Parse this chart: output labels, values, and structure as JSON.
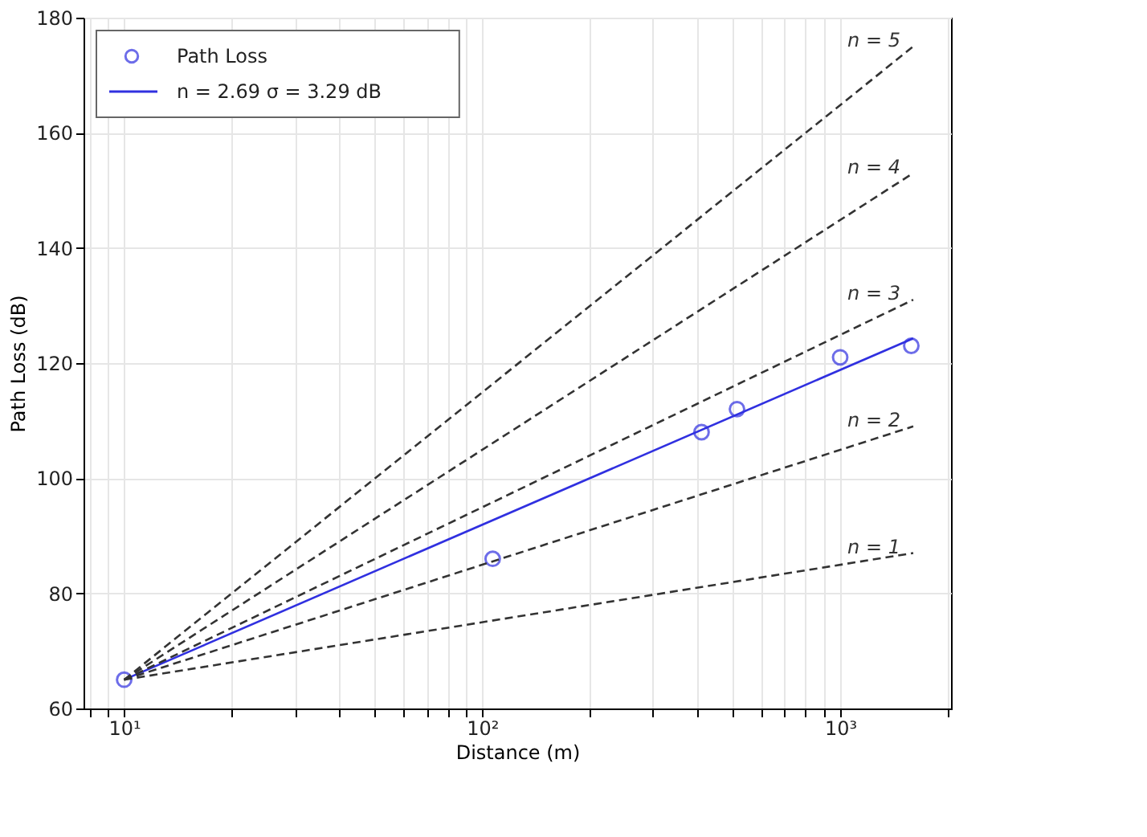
{
  "chart_data": {
    "type": "line",
    "xlabel": "Distance (m)",
    "ylabel": "Path Loss (dB)",
    "log": "x",
    "grid": true,
    "legend": "top left",
    "xlim": [
      7.7,
      2040
    ],
    "ylim": [
      60,
      180
    ],
    "xticks": [
      {
        "value": 8,
        "label": null
      },
      {
        "value": 9,
        "label": null
      },
      {
        "value": 10,
        "label": "10¹"
      },
      {
        "value": 20,
        "label": null
      },
      {
        "value": 30,
        "label": null
      },
      {
        "value": 40,
        "label": null
      },
      {
        "value": 50,
        "label": null
      },
      {
        "value": 60,
        "label": null
      },
      {
        "value": 70,
        "label": null
      },
      {
        "value": 80,
        "label": null
      },
      {
        "value": 90,
        "label": null
      },
      {
        "value": 100,
        "label": "10²"
      },
      {
        "value": 200,
        "label": null
      },
      {
        "value": 300,
        "label": null
      },
      {
        "value": 400,
        "label": null
      },
      {
        "value": 500,
        "label": null
      },
      {
        "value": 600,
        "label": null
      },
      {
        "value": 700,
        "label": null
      },
      {
        "value": 800,
        "label": null
      },
      {
        "value": 900,
        "label": null
      },
      {
        "value": 1000,
        "label": "10³"
      },
      {
        "value": 2000,
        "label": null
      }
    ],
    "yticks": [
      60,
      80,
      100,
      120,
      140,
      160,
      180
    ],
    "series": [
      {
        "name": "Path Loss",
        "type": "scatter",
        "marker": "circle",
        "color": "#3030e0",
        "x": [
          10,
          107,
          410,
          515,
          1000,
          1580
        ],
        "values": [
          65,
          86,
          108,
          112,
          121,
          123
        ]
      },
      {
        "name": "n = 2.69   σ = 3.29  dB",
        "line_style": "solid",
        "color": "#3030e0",
        "x": [
          10,
          1600
        ],
        "values": [
          65,
          124.3
        ]
      },
      {
        "name": "n = 1",
        "line_style": "dashed",
        "color": "#333333",
        "x": [
          10,
          1600
        ],
        "values": [
          65,
          87
        ]
      },
      {
        "name": "n = 2",
        "line_style": "dashed",
        "color": "#333333",
        "x": [
          10,
          1600
        ],
        "values": [
          65,
          109
        ]
      },
      {
        "name": "n = 3",
        "line_style": "dashed",
        "color": "#333333",
        "x": [
          10,
          1600
        ],
        "values": [
          65,
          131
        ]
      },
      {
        "name": "n = 4",
        "line_style": "dashed",
        "color": "#333333",
        "x": [
          10,
          1600
        ],
        "values": [
          65,
          153
        ]
      },
      {
        "name": "n = 5",
        "line_style": "dashed",
        "color": "#333333",
        "x": [
          10,
          1600
        ],
        "values": [
          65,
          175
        ]
      }
    ]
  }
}
